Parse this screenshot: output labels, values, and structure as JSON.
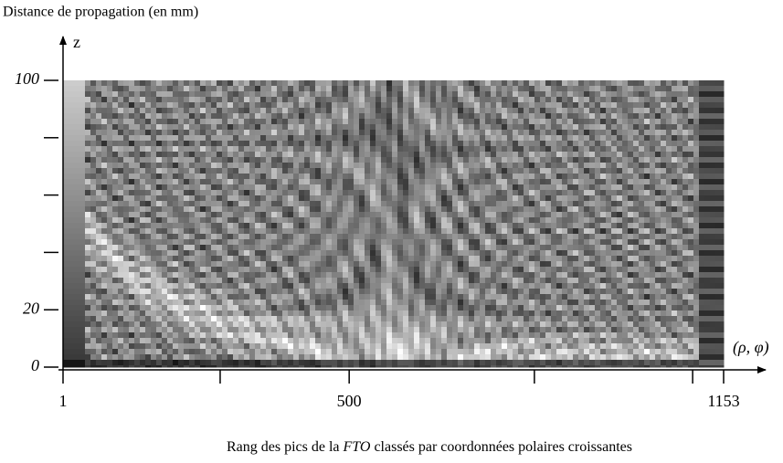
{
  "chart_data": {
    "type": "heatmap",
    "title": "Distance de propagation (en mm)",
    "y_axis_symbol": "z",
    "x_axis_symbol": "(ρ, φ)",
    "xlabel": {
      "before": "Rang des pics de la ",
      "italic": "FTO",
      "after": " classés par coordonnées polaires croissantes"
    },
    "xlim": [
      1,
      1153
    ],
    "xticks": [
      1,
      {
        "value": 275,
        "label": null
      },
      500,
      {
        "value": 823,
        "label": null
      },
      {
        "value": 1099,
        "label": null
      },
      1153
    ],
    "ylim": [
      0,
      100
    ],
    "yticks": [
      0,
      20,
      {
        "value": 40,
        "label": null
      },
      {
        "value": 60,
        "label": null
      },
      {
        "value": 80,
        "label": null
      },
      100
    ]
  }
}
